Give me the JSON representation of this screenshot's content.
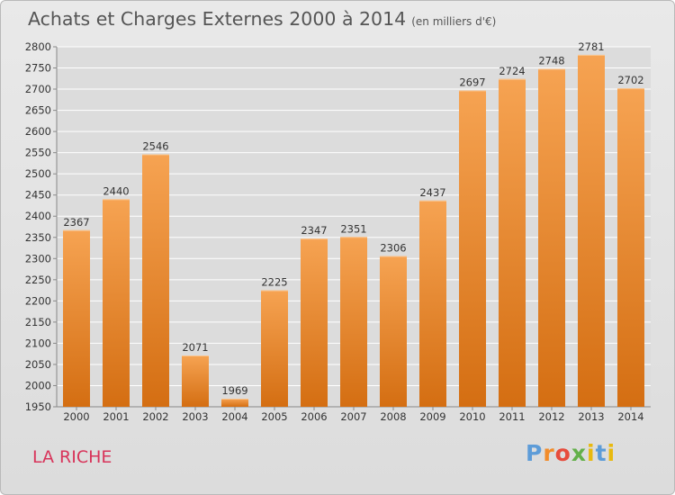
{
  "header": {
    "title": "Achats et Charges Externes 2000 à 2014",
    "subtitle": "(en milliers d'€)"
  },
  "commune": "LA RICHE",
  "logo": {
    "text": "Proxiti"
  },
  "colors": {
    "bar_top": "#f6a352",
    "bar_bottom": "#d46e12",
    "plot_bg": "#dcdcdc",
    "grid": "#ffffff",
    "commune": "#d8345a"
  },
  "chart_data": {
    "type": "bar",
    "categories": [
      "2000",
      "2001",
      "2002",
      "2003",
      "2004",
      "2005",
      "2006",
      "2007",
      "2008",
      "2009",
      "2010",
      "2011",
      "2012",
      "2013",
      "2014"
    ],
    "values": [
      2367,
      2440,
      2546,
      2071,
      1969,
      2225,
      2347,
      2351,
      2306,
      2437,
      2697,
      2724,
      2748,
      2781,
      2702
    ],
    "ylim": [
      1950,
      2800
    ],
    "yticks": [
      1950,
      2000,
      2050,
      2100,
      2150,
      2200,
      2250,
      2300,
      2350,
      2400,
      2450,
      2500,
      2550,
      2600,
      2650,
      2700,
      2750,
      2800
    ],
    "grid": true,
    "data_labels": true
  }
}
